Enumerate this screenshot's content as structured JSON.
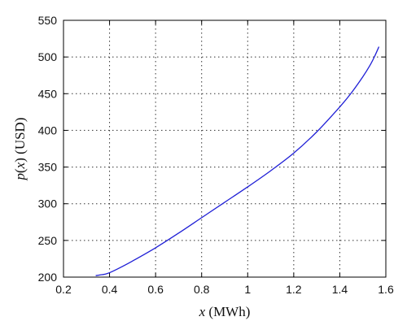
{
  "chart_data": {
    "type": "line",
    "title": "",
    "xlabel": {
      "var": "x",
      "unit": " (MWh)"
    },
    "ylabel": {
      "var": "p",
      "arg": "x",
      "unit": " (USD)"
    },
    "xlim": [
      0.2,
      1.6
    ],
    "ylim": [
      200,
      550
    ],
    "xticks": [
      0.2,
      0.4,
      0.6,
      0.8,
      1.0,
      1.2,
      1.4,
      1.6
    ],
    "xtick_labels": [
      "0.2",
      "0.4",
      "0.6",
      "0.8",
      "1",
      "1.2",
      "1.4",
      "1.6"
    ],
    "yticks": [
      200,
      250,
      300,
      350,
      400,
      450,
      500,
      550
    ],
    "ytick_labels": [
      "200",
      "250",
      "300",
      "350",
      "400",
      "450",
      "500",
      "550"
    ],
    "grid": true,
    "line_color": "#1f1fd6",
    "series": [
      {
        "x": [
          0.34,
          0.36,
          0.38,
          0.4,
          0.44,
          0.5,
          0.6,
          0.7,
          0.8,
          0.9,
          1.0,
          1.1,
          1.2,
          1.3,
          1.4,
          1.45,
          1.5,
          1.53,
          1.55,
          1.57
        ],
        "y": [
          202,
          203,
          204,
          206,
          212,
          222,
          240,
          260,
          281,
          302,
          323,
          345,
          369,
          398,
          432,
          451,
          473,
          488,
          500,
          514
        ]
      }
    ]
  }
}
